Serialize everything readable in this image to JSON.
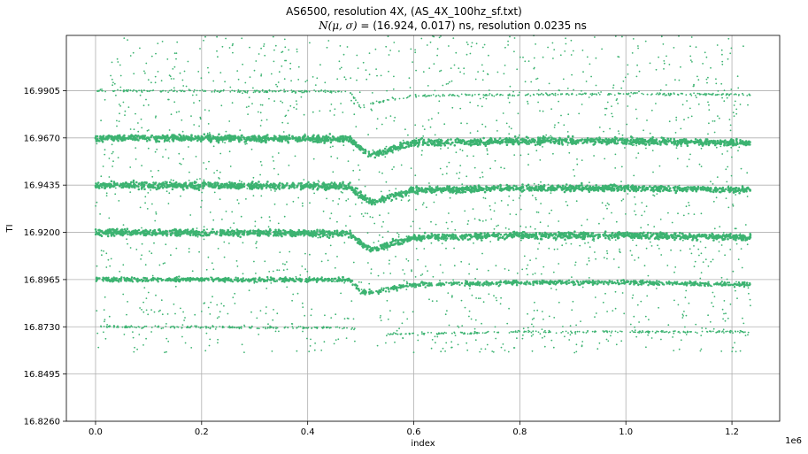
{
  "chart_data": {
    "type": "scatter",
    "title": "AS6500, resolution 4X, (AS_4X_100hz_sf.txt)",
    "subtitle_math": "N(μ, σ)",
    "subtitle_rest": " = (16.924, 0.017) ns, resolution 0.0235 ns",
    "xlabel": "index",
    "ylabel": "TI",
    "x_offset_label": "1e6",
    "xlim": [
      -0.055,
      1.29
    ],
    "ylim": [
      16.826,
      17.018
    ],
    "xticks": [
      0.0,
      0.2,
      0.4,
      0.6,
      0.8,
      1.0,
      1.2
    ],
    "xtick_labels": [
      "0.0",
      "0.2",
      "0.4",
      "0.6",
      "0.8",
      "1.0",
      "1.2"
    ],
    "yticks": [
      16.826,
      16.8495,
      16.873,
      16.8965,
      16.92,
      16.9435,
      16.967,
      16.9905
    ],
    "ytick_labels": [
      "16.8260",
      "16.8495",
      "16.8730",
      "16.8965",
      "16.9200",
      "16.9435",
      "16.9670",
      "16.9905"
    ],
    "grid": true,
    "marker_color": "#3cb371",
    "x_range_data": [
      0.0,
      1.235
    ],
    "series": [
      {
        "level": 16.9905,
        "shape": [
          [
            0.0,
            0.0
          ],
          [
            0.48,
            -0.0005
          ],
          [
            0.5,
            -0.0085
          ],
          [
            0.52,
            -0.0065
          ],
          [
            0.6,
            -0.0025
          ],
          [
            0.8,
            -0.002
          ],
          [
            1.0,
            -0.0015
          ],
          [
            1.235,
            -0.002
          ]
        ],
        "thickness": "thin"
      },
      {
        "level": 16.967,
        "shape": [
          [
            0.0,
            0.0
          ],
          [
            0.48,
            -0.0005
          ],
          [
            0.5,
            -0.005
          ],
          [
            0.52,
            -0.0085
          ],
          [
            0.6,
            -0.0025
          ],
          [
            0.8,
            -0.0015
          ],
          [
            1.0,
            -0.0015
          ],
          [
            1.235,
            -0.0025
          ]
        ],
        "thickness": "thick"
      },
      {
        "level": 16.9435,
        "shape": [
          [
            0.0,
            0.0
          ],
          [
            0.48,
            -0.0005
          ],
          [
            0.5,
            -0.0055
          ],
          [
            0.52,
            -0.0085
          ],
          [
            0.6,
            -0.0025
          ],
          [
            0.8,
            -0.0015
          ],
          [
            1.0,
            -0.0015
          ],
          [
            1.235,
            -0.0025
          ]
        ],
        "thickness": "thick"
      },
      {
        "level": 16.92,
        "shape": [
          [
            0.0,
            0.0
          ],
          [
            0.48,
            -0.0005
          ],
          [
            0.5,
            -0.0055
          ],
          [
            0.52,
            -0.0085
          ],
          [
            0.6,
            -0.0025
          ],
          [
            0.8,
            -0.0015
          ],
          [
            1.0,
            -0.0015
          ],
          [
            1.235,
            -0.0025
          ]
        ],
        "thickness": "thick"
      },
      {
        "level": 16.8965,
        "shape": [
          [
            0.0,
            0.0
          ],
          [
            0.48,
            0.0
          ],
          [
            0.5,
            -0.006
          ],
          [
            0.52,
            -0.0065
          ],
          [
            0.6,
            -0.0025
          ],
          [
            0.8,
            -0.0015
          ],
          [
            1.0,
            -0.0015
          ],
          [
            1.235,
            -0.0025
          ]
        ],
        "thickness": "medium"
      },
      {
        "level": 16.873,
        "shape": [
          [
            0.0,
            0.0
          ],
          [
            0.48,
            -0.0005
          ],
          [
            0.55,
            -0.0035
          ],
          [
            0.6,
            -0.0035
          ],
          [
            0.8,
            -0.0025
          ],
          [
            1.0,
            -0.0025
          ],
          [
            1.235,
            -0.0025
          ]
        ],
        "thickness": "thin",
        "gap": [
          0.49,
          0.55
        ]
      }
    ]
  }
}
